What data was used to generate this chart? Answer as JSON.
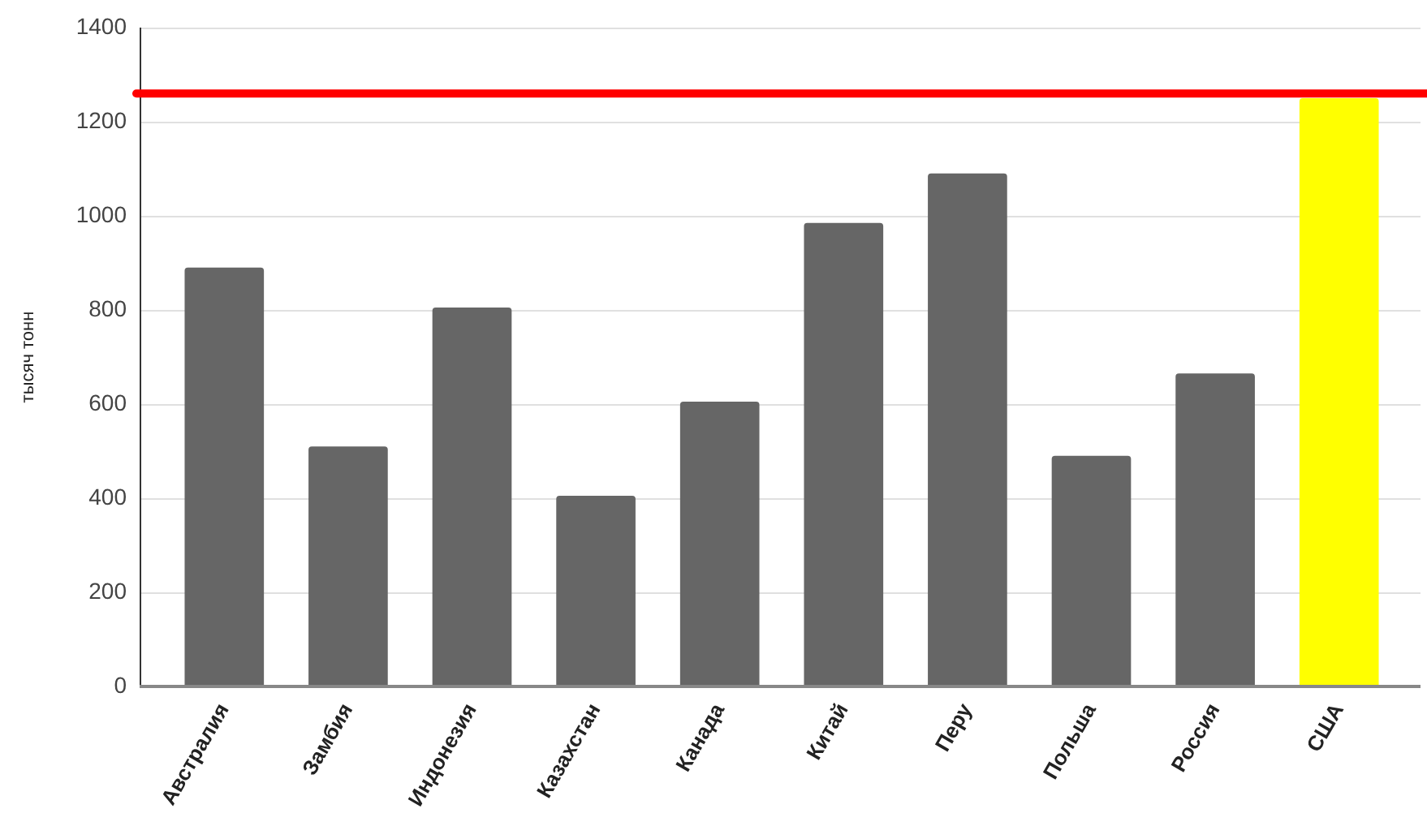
{
  "chart_data": {
    "type": "bar",
    "ylabel": "тысяч тонн",
    "categories": [
      "Австралия",
      "Замбия",
      "Индонезия",
      "Казахстан",
      "Канада",
      "Китай",
      "Перу",
      "Польша",
      "Россия",
      "США"
    ],
    "values": [
      890,
      510,
      805,
      405,
      605,
      985,
      1090,
      490,
      665,
      1250
    ],
    "colors": [
      "#666666",
      "#666666",
      "#666666",
      "#666666",
      "#666666",
      "#666666",
      "#666666",
      "#666666",
      "#666666",
      "#ffff00"
    ],
    "ylim": [
      0,
      1400
    ],
    "yticks": [
      0,
      200,
      400,
      600,
      800,
      1000,
      1200,
      1400
    ],
    "grid": "y",
    "ref_lines": [
      {
        "axis": "y",
        "value": 1260,
        "color": "#ff0000"
      }
    ]
  }
}
